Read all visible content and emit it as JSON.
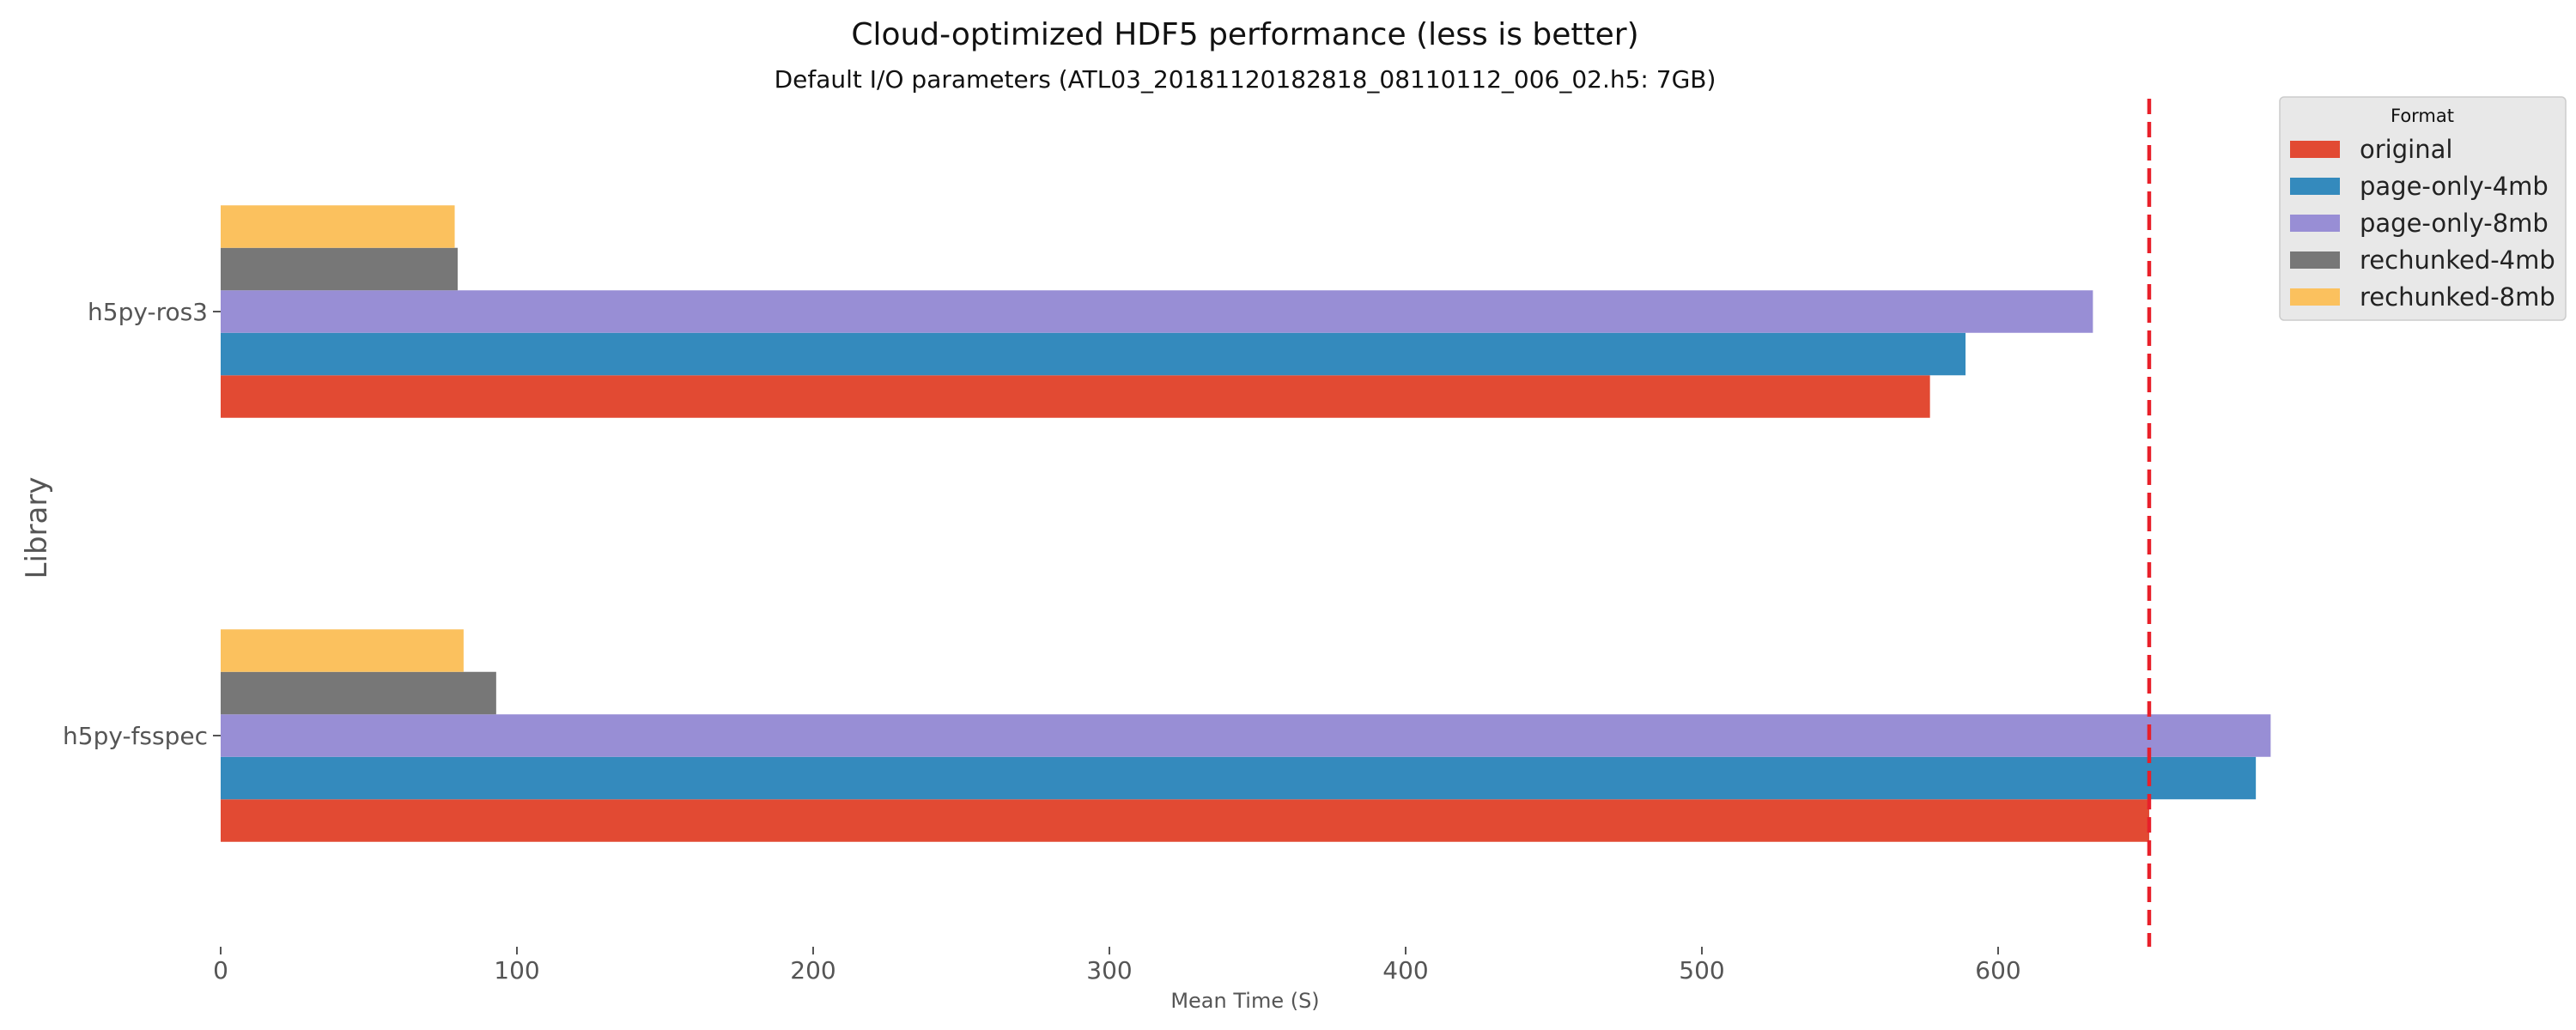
{
  "chart_data": {
    "type": "bar",
    "orientation": "horizontal",
    "title": "Cloud-optimized HDF5 performance (less is better)",
    "subtitle": "Default I/O parameters (ATL03_20181120182818_08110112_006_02.h5: 7GB)",
    "xlabel": "Mean Time (S)",
    "ylabel": "Library",
    "xlim": [
      0,
      700
    ],
    "x_ticks": [
      0,
      100,
      200,
      300,
      400,
      500,
      600
    ],
    "grid": false,
    "categories": [
      "h5py-fsspec",
      "h5py-ros3"
    ],
    "series": [
      {
        "name": "original",
        "color": "#E24A33",
        "values": [
          651,
          577
        ]
      },
      {
        "name": "page-only-4mb",
        "color": "#348ABD",
        "values": [
          687,
          589
        ]
      },
      {
        "name": "page-only-8mb",
        "color": "#988ED5",
        "values": [
          692,
          632
        ]
      },
      {
        "name": "rechunked-4mb",
        "color": "#777777",
        "values": [
          93,
          80
        ]
      },
      {
        "name": "rechunked-8mb",
        "color": "#FBC15E",
        "values": [
          82,
          79
        ]
      }
    ],
    "reference_line": {
      "x": 651,
      "color": "#E8202A",
      "style": "dashed"
    },
    "legend": {
      "title": "Format",
      "placement": "top-right"
    }
  }
}
